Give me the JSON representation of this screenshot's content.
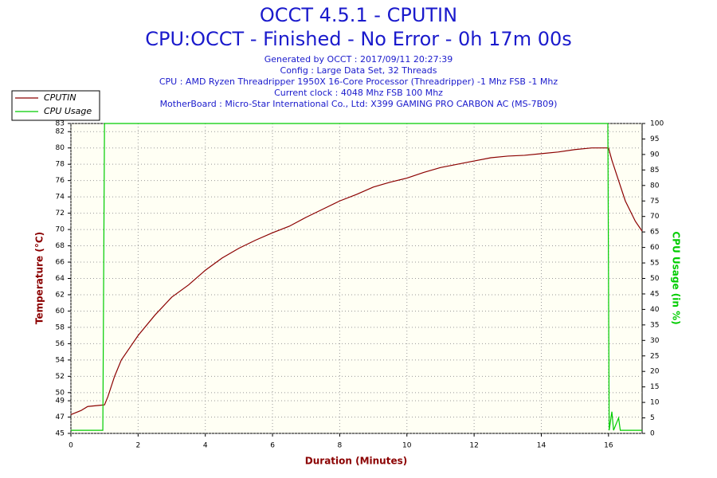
{
  "chart_data": {
    "type": "line",
    "title": "OCCT 4.5.1 - CPUTIN",
    "subtitle": "CPU:OCCT - Finished - No Error - 0h 17m 00s",
    "info": [
      "Generated by OCCT : 2017/09/11 20:27:39",
      "Config : Large Data Set, 32 Threads",
      "CPU : AMD Ryzen Threadripper 1950X 16-Core Processor (Threadripper) -1 Mhz FSB -1 Mhz",
      "Current clock : 4048 Mhz FSB 100 Mhz",
      "MotherBoard : Micro-Star International Co., Ltd: X399 GAMING PRO CARBON AC (MS-7B09)"
    ],
    "xlabel": "Duration (Minutes)",
    "ylabel": "Temperature (°C)",
    "y2label": "CPU Usage (in %)",
    "xlim": [
      0,
      17
    ],
    "xticks": [
      0,
      2,
      4,
      6,
      8,
      10,
      12,
      14,
      16
    ],
    "ylim": [
      45,
      83
    ],
    "yticks": [
      45,
      47,
      49,
      50,
      52,
      54,
      56,
      58,
      60,
      62,
      64,
      66,
      68,
      70,
      72,
      74,
      76,
      78,
      80,
      82,
      83
    ],
    "y2lim": [
      0,
      100
    ],
    "y2ticks": [
      0,
      5,
      10,
      15,
      20,
      25,
      30,
      35,
      40,
      45,
      50,
      55,
      60,
      65,
      70,
      75,
      80,
      85,
      90,
      95,
      100
    ],
    "grid": true,
    "legend": "top-left",
    "series": [
      {
        "name": "CPUTIN",
        "color": "#8b0000",
        "axis": "y",
        "x": [
          0,
          0.3,
          0.5,
          1.0,
          1.1,
          1.3,
          1.5,
          1.8,
          2,
          2.5,
          3,
          3.5,
          4,
          4.5,
          5,
          5.5,
          6,
          6.5,
          7,
          7.5,
          8,
          8.5,
          9,
          9.5,
          10,
          10.5,
          11,
          11.5,
          12,
          12.5,
          13,
          13.5,
          14,
          14.5,
          15,
          15.5,
          16,
          16.1,
          16.3,
          16.5,
          16.8,
          17
        ],
        "values": [
          47.3,
          47.8,
          48.3,
          48.5,
          49.5,
          52,
          54,
          55.8,
          57,
          59.5,
          61.7,
          63.2,
          65,
          66.5,
          67.7,
          68.7,
          69.6,
          70.4,
          71.5,
          72.5,
          73.5,
          74.3,
          75.2,
          75.8,
          76.3,
          77,
          77.6,
          78,
          78.4,
          78.8,
          79,
          79.1,
          79.3,
          79.5,
          79.8,
          80,
          80,
          78.5,
          76,
          73.5,
          71,
          69.8
        ]
      },
      {
        "name": "CPU Usage",
        "color": "#00cc00",
        "axis": "y2",
        "x": [
          0,
          0.95,
          1.0,
          15.98,
          16.0,
          16.02,
          16.1,
          16.15,
          16.3,
          16.35,
          17
        ],
        "values": [
          1,
          1,
          100,
          100,
          50,
          1,
          7,
          1,
          5,
          1,
          1
        ]
      }
    ]
  }
}
